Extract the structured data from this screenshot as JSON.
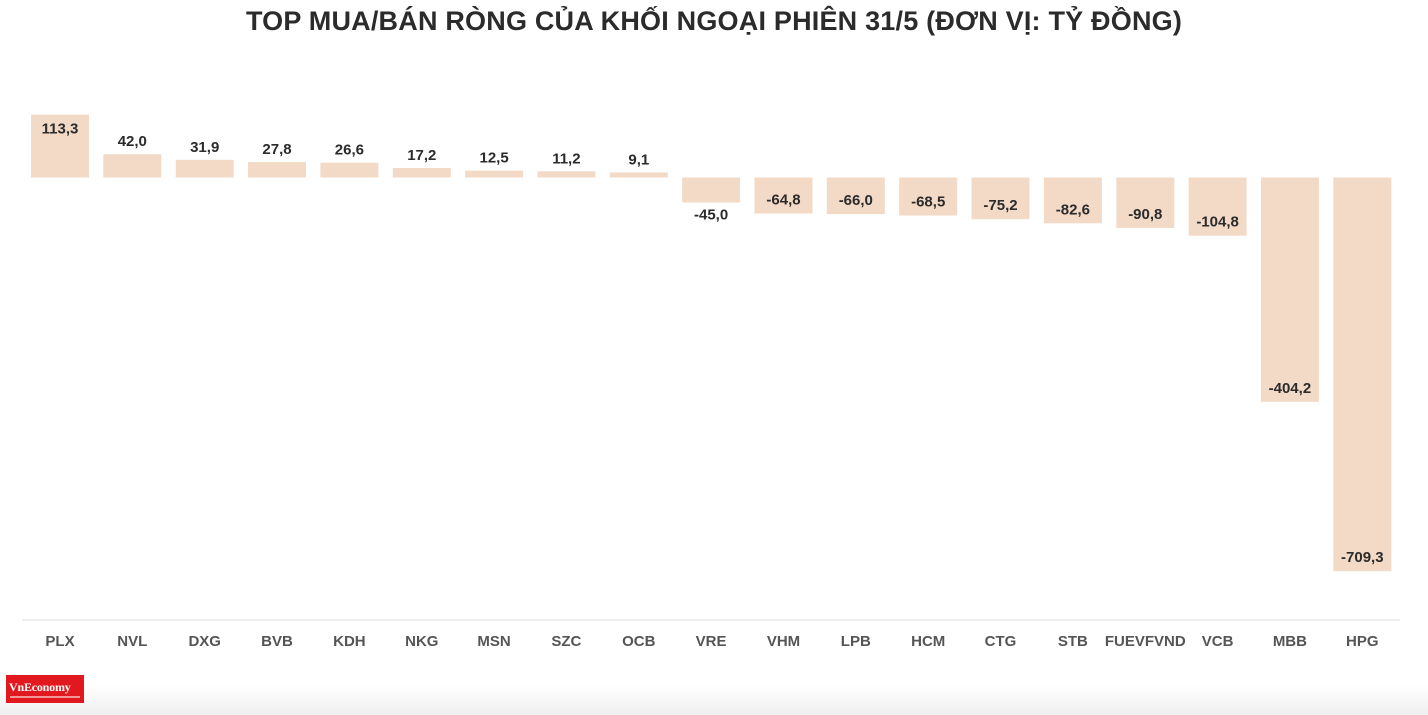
{
  "chart_data": {
    "type": "bar",
    "title": "TOP MUA/BÁN RÒNG CỦA KHỐI NGOẠI PHIÊN 31/5 (ĐƠN VỊ: TỶ ĐỒNG)",
    "categories": [
      "PLX",
      "NVL",
      "DXG",
      "BVB",
      "KDH",
      "NKG",
      "MSN",
      "SZC",
      "OCB",
      "VRE",
      "VHM",
      "LPB",
      "HCM",
      "CTG",
      "STB",
      "FUEVFVND",
      "VCB",
      "MBB",
      "HPG"
    ],
    "values": [
      113.3,
      42.0,
      31.9,
      27.8,
      26.6,
      17.2,
      12.5,
      11.2,
      9.1,
      -45.0,
      -64.8,
      -66.0,
      -68.5,
      -75.2,
      -82.6,
      -90.8,
      -104.8,
      -404.2,
      -709.3
    ],
    "data_labels": [
      "113,3",
      "42,0",
      "31,9",
      "27,8",
      "26,6",
      "17,2",
      "12,5",
      "11,2",
      "9,1",
      "-45,0",
      "-64,8",
      "-66,0",
      "-68,5",
      "-75,2",
      "-82,6",
      "-90,8",
      "-104,8",
      "-404,2",
      "-709,3"
    ],
    "xlabel": "",
    "ylabel": "",
    "grid": false,
    "legend": "none",
    "colors": {
      "bar": "#f2dac7",
      "label": "#2b2b2b",
      "tick": "#555555",
      "axis": "#dddddd"
    }
  },
  "logo": {
    "text": "VnEconomy",
    "color": "#e1191e"
  }
}
